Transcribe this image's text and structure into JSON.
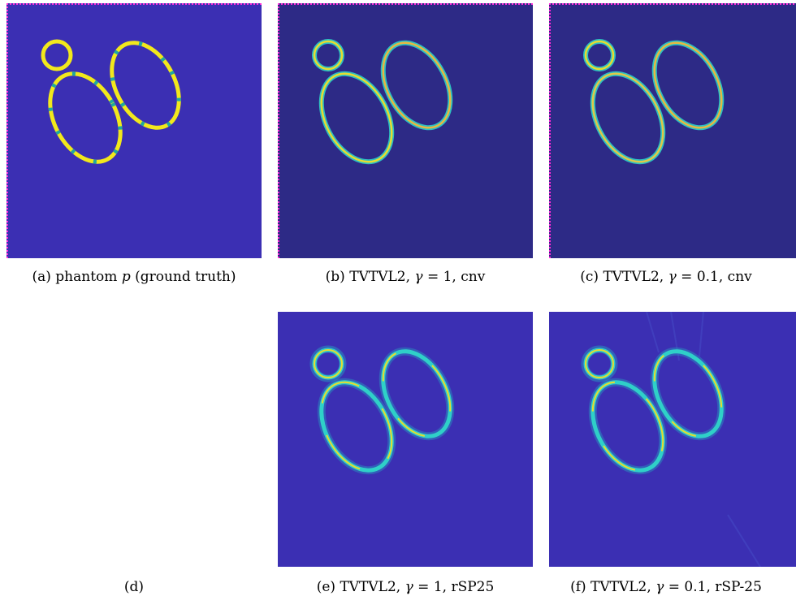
{
  "figure": {
    "panels": [
      {
        "id": "a",
        "label": "(a)",
        "text": "phantom",
        "var": "p",
        "tail": "(ground truth)",
        "background": "#3b2fb3"
      },
      {
        "id": "b",
        "label": "(b)",
        "method": "TVTVL2,",
        "gamma_sym": "γ",
        "gamma_value": "= 1,",
        "variant": "cnv",
        "background": "#2d2a86"
      },
      {
        "id": "c",
        "label": "(c)",
        "method": "TVTVL2,",
        "gamma_sym": "γ",
        "gamma_value": "= 0.1,",
        "variant": "cnv",
        "background": "#2d2a86"
      },
      {
        "id": "d",
        "label": "(d)"
      },
      {
        "id": "e",
        "label": "(e)",
        "method": "TVTVL2,",
        "gamma_sym": "γ",
        "gamma_value": "= 1,",
        "variant": "rSP25",
        "background": "#3b2fb3"
      },
      {
        "id": "f",
        "label": "(f)",
        "method": "TVTVL2,",
        "gamma_sym": "γ",
        "gamma_value": "= 0.1,",
        "variant": "rSP-25",
        "background": "#3b2fb3"
      }
    ],
    "colors": {
      "edge_dots": "#ff2bd8",
      "ring_yellow": "#f2e81c",
      "ring_teal": "#1fa8a0",
      "ring_cyan": "#2fd0c8"
    }
  }
}
